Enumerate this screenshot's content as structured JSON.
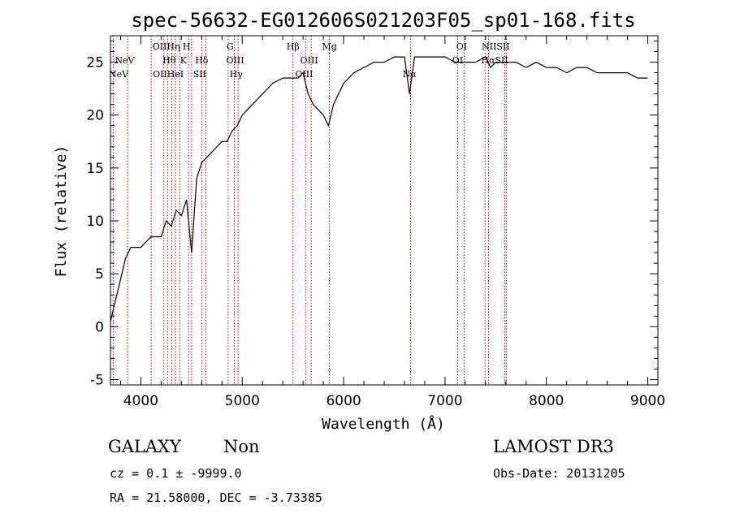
{
  "chart_data": {
    "type": "line",
    "title": "spec-56632-EG012606S021203F05_sp01-168.fits",
    "xlabel": "Wavelength (Å)",
    "ylabel": "Flux (relative)",
    "xlim": [
      3700,
      9100
    ],
    "ylim": [
      -5.5,
      27.5
    ],
    "x_ticks": [
      4000,
      5000,
      6000,
      7000,
      8000,
      9000
    ],
    "y_ticks": [
      -5,
      0,
      5,
      10,
      15,
      20,
      25
    ],
    "grid": false,
    "series": [
      {
        "x": [
          3700,
          3750,
          3800,
          3850,
          3900,
          3950,
          4000,
          4050,
          4100,
          4150,
          4200,
          4250,
          4300,
          4350,
          4400,
          4450,
          4500,
          4550,
          4600,
          4650,
          4700,
          4750,
          4800,
          4850,
          4900,
          4950,
          5000,
          5100,
          5200,
          5300,
          5400,
          5500,
          5550,
          5600,
          5650,
          5700,
          5750,
          5800,
          5850,
          5900,
          6000,
          6100,
          6200,
          6300,
          6400,
          6500,
          6600,
          6650,
          6700,
          6800,
          6900,
          7000,
          7100,
          7200,
          7300,
          7400,
          7450,
          7500,
          7550,
          7600,
          7700,
          7800,
          7900,
          8000,
          8100,
          8200,
          8300,
          8400,
          8500,
          8600,
          8700,
          8800,
          8900,
          9000
        ],
        "y": [
          0.5,
          2.5,
          4.5,
          6.5,
          7.5,
          7.5,
          7.5,
          8.0,
          8.5,
          8.5,
          8.5,
          10.0,
          9.5,
          11.0,
          10.5,
          12.0,
          7.0,
          14.0,
          15.5,
          16.0,
          16.5,
          17.0,
          17.5,
          17.5,
          18.5,
          19.0,
          20.0,
          21.0,
          22.0,
          23.0,
          23.5,
          23.5,
          23.5,
          24.0,
          22.0,
          21.0,
          20.5,
          20.0,
          19.0,
          21.0,
          23.0,
          24.0,
          24.5,
          25.0,
          25.0,
          25.5,
          25.5,
          22.0,
          25.5,
          25.5,
          25.5,
          25.5,
          25.0,
          25.0,
          25.0,
          25.5,
          24.5,
          25.0,
          25.0,
          25.0,
          25.0,
          24.5,
          25.0,
          24.5,
          24.5,
          24.0,
          24.5,
          24.5,
          24.0,
          24.0,
          24.0,
          24.0,
          23.5,
          23.5
        ]
      }
    ],
    "lines": [
      {
        "w": 3727,
        "label": "OII"
      },
      {
        "w": 3869,
        "label": "NeV"
      },
      {
        "w": 4102,
        "label": "Hθ"
      },
      {
        "w": 4226,
        "label": "OII"
      },
      {
        "w": 4263,
        "label": "Hη"
      },
      {
        "w": 4304,
        "label": "H"
      },
      {
        "w": 4340,
        "label": "Hθ"
      },
      {
        "w": 4383,
        "label": "K"
      },
      {
        "w": 4471,
        "label": "HeI"
      },
      {
        "w": 4500,
        "label": "H"
      },
      {
        "w": 4600,
        "label": "Hδ"
      },
      {
        "w": 4640,
        "label": "SII"
      },
      {
        "w": 4861,
        "label": "G"
      },
      {
        "w": 4922,
        "label": "OIII"
      },
      {
        "w": 4959,
        "label": "Hγ"
      },
      {
        "w": 5500,
        "label": "Hβ"
      },
      {
        "w": 5625,
        "label": "OIII"
      },
      {
        "w": 5680,
        "label": "OIII"
      },
      {
        "w": 5860,
        "label": "Mg"
      },
      {
        "w": 6660,
        "label": "Nα"
      },
      {
        "w": 7125,
        "label": "OI"
      },
      {
        "w": 7190,
        "label": "OI"
      },
      {
        "w": 7395,
        "label": "NII"
      },
      {
        "w": 7430,
        "label": "Hα"
      },
      {
        "w": 7590,
        "label": "SII"
      },
      {
        "w": 7605,
        "label": "SII"
      }
    ],
    "line_labels": [
      {
        "text": "NeV",
        "w": 3840,
        "row": 1
      },
      {
        "text": "NeV",
        "w": 3780,
        "row": 2
      },
      {
        "text": "OIIHη",
        "w": 4250,
        "row": 0
      },
      {
        "text": "H",
        "w": 4450,
        "row": 0
      },
      {
        "text": "Hθ",
        "w": 4280,
        "row": 1
      },
      {
        "text": "K",
        "w": 4420,
        "row": 1
      },
      {
        "text": "OIIHeI",
        "w": 4270,
        "row": 2
      },
      {
        "text": "Hδ",
        "w": 4600,
        "row": 1
      },
      {
        "text": "SII",
        "w": 4580,
        "row": 2
      },
      {
        "text": "G",
        "w": 4880,
        "row": 0
      },
      {
        "text": "OIII",
        "w": 4930,
        "row": 1
      },
      {
        "text": "Hγ",
        "w": 4940,
        "row": 2
      },
      {
        "text": "Hβ",
        "w": 5500,
        "row": 0
      },
      {
        "text": "OIII",
        "w": 5660,
        "row": 1
      },
      {
        "text": "OIII",
        "w": 5610,
        "row": 2
      },
      {
        "text": "Mg",
        "w": 5860,
        "row": 0
      },
      {
        "text": "Nα",
        "w": 6650,
        "row": 2
      },
      {
        "text": "OI",
        "w": 7165,
        "row": 0
      },
      {
        "text": "OI",
        "w": 7125,
        "row": 1
      },
      {
        "text": "NIISII",
        "w": 7500,
        "row": 0
      },
      {
        "text": "HαSII",
        "w": 7490,
        "row": 1
      }
    ]
  },
  "footer": {
    "object_class": "GALAXY",
    "subclass": "Non",
    "survey": "LAMOST DR3",
    "cz": "cz = 0.1 ± -9999.0",
    "obs_date": "Obs-Date: 20131205",
    "radec": "RA =  21.58000, DEC =  -3.73385"
  }
}
